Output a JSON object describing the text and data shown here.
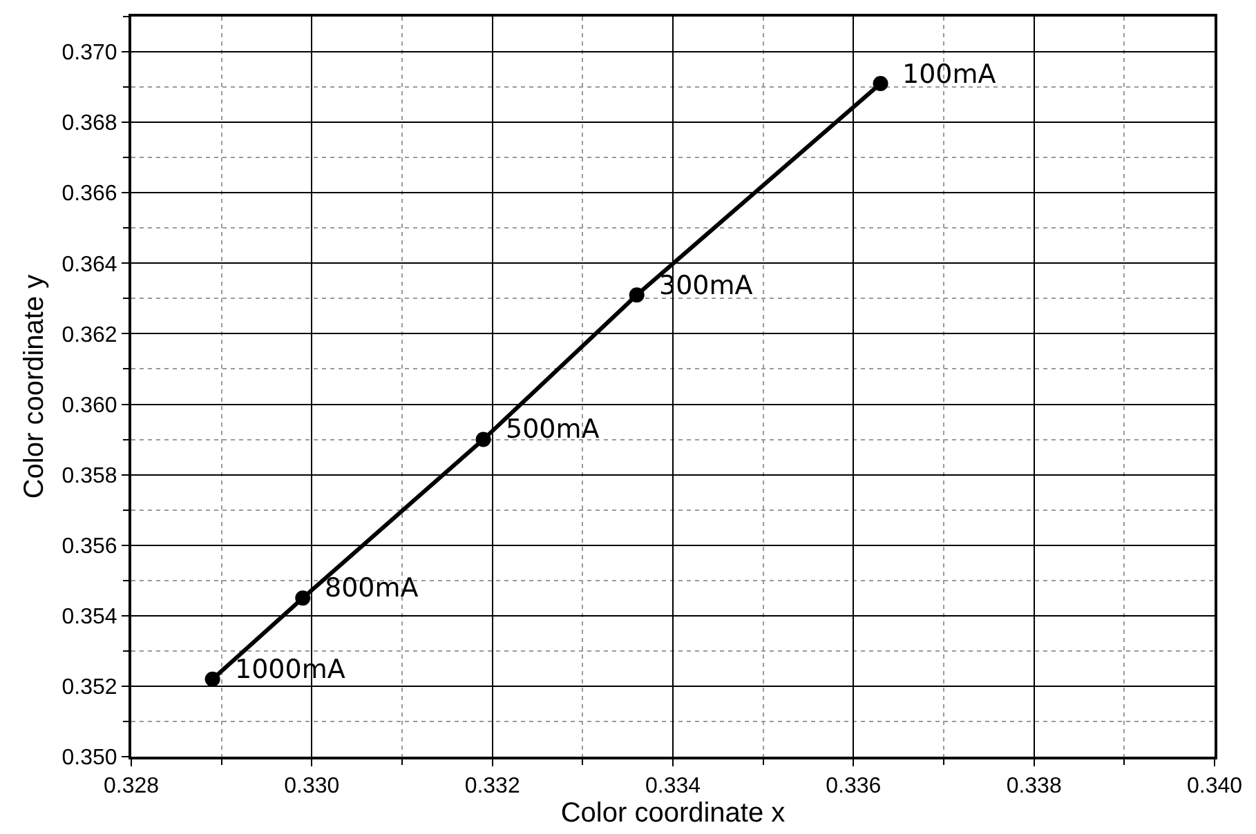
{
  "chart_data": {
    "type": "line",
    "xlabel": "Color coordinate x",
    "ylabel": "Color coordinate y",
    "x": [
      0.3289,
      0.3299,
      0.3319,
      0.3336,
      0.3363
    ],
    "series": [
      {
        "color": "#000000",
        "values": [
          0.3522,
          0.3545,
          0.359,
          0.3631,
          0.3691
        ]
      }
    ],
    "annotations": [
      {
        "text": "1000mA",
        "x": 0.3289,
        "y": 0.3522
      },
      {
        "text": "800mA",
        "x": 0.3299,
        "y": 0.3545
      },
      {
        "text": "500mA",
        "x": 0.3319,
        "y": 0.359
      },
      {
        "text": "300mA",
        "x": 0.3336,
        "y": 0.3631
      },
      {
        "text": "100mA",
        "x": 0.3363,
        "y": 0.3691
      }
    ],
    "xlim": [
      0.328,
      0.34
    ],
    "xticks": [
      {
        "value": 0.328,
        "label": "0.328"
      },
      {
        "value": 0.33,
        "label": "0.330"
      },
      {
        "value": 0.332,
        "label": "0.332"
      },
      {
        "value": 0.334,
        "label": "0.334"
      },
      {
        "value": 0.336,
        "label": "0.336"
      },
      {
        "value": 0.338,
        "label": "0.338"
      },
      {
        "value": 0.34,
        "label": "0.340"
      }
    ],
    "ylim": [
      0.35,
      0.371
    ],
    "yticks": [
      {
        "value": 0.35,
        "label": "0.350"
      },
      {
        "value": 0.352,
        "label": "0.352"
      },
      {
        "value": 0.354,
        "label": "0.354"
      },
      {
        "value": 0.356,
        "label": "0.356"
      },
      {
        "value": 0.358,
        "label": "0.358"
      },
      {
        "value": 0.36,
        "label": "0.360"
      },
      {
        "value": 0.362,
        "label": "0.362"
      },
      {
        "value": 0.364,
        "label": "0.364"
      },
      {
        "value": 0.366,
        "label": "0.366"
      },
      {
        "value": 0.368,
        "label": "0.368"
      },
      {
        "value": 0.37,
        "label": "0.370"
      }
    ],
    "grid": true,
    "marker": "circle",
    "line_style": "solid"
  }
}
